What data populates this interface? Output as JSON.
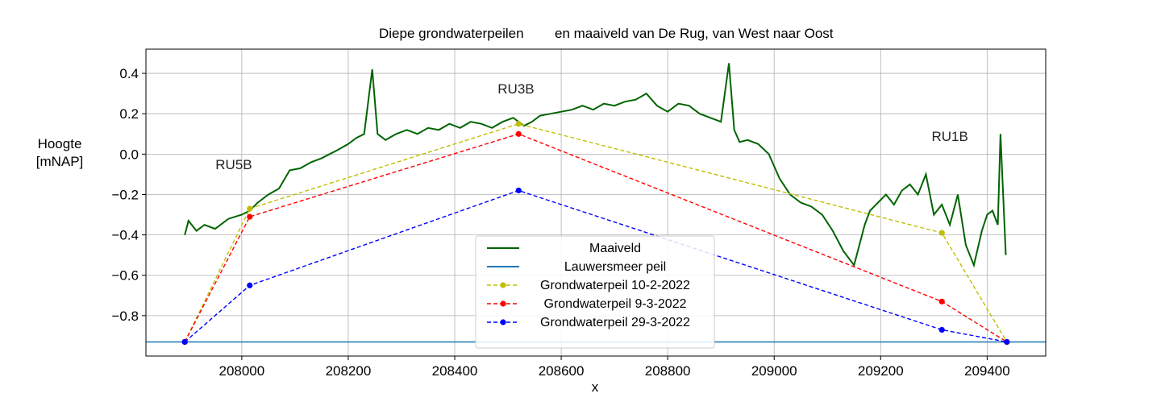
{
  "chart_data": {
    "type": "line",
    "title_part1": "Diepe grondwaterpeilen",
    "title_part2": "en maaiveld van De Rug, van West naar Oost",
    "xlabel": "x",
    "ylabel_line1": "Hoogte",
    "ylabel_line2": "[mNAP]",
    "xlim": [
      207820,
      209510
    ],
    "ylim": [
      -1.0,
      0.52
    ],
    "xticks": [
      208000,
      208200,
      208400,
      208600,
      208800,
      209000,
      209200,
      209400
    ],
    "xtick_labels": [
      "208000",
      "208200",
      "208400",
      "208600",
      "208800",
      "209000",
      "209200",
      "209400"
    ],
    "yticks": [
      -0.8,
      -0.6,
      -0.4,
      -0.2,
      0.0,
      0.2,
      0.4
    ],
    "ytick_labels": [
      "−0.8",
      "−0.6",
      "−0.4",
      "−0.2",
      "0.0",
      "0.2",
      "0.4"
    ],
    "grid": true,
    "legend_position": "bottom-center",
    "annotations": [
      {
        "text": "RU5B",
        "x": 207985,
        "y": -0.075
      },
      {
        "text": "RU3B",
        "x": 208515,
        "y": 0.3
      },
      {
        "text": "RU1B",
        "x": 209330,
        "y": 0.065
      }
    ],
    "series": [
      {
        "name": "Maaiveld",
        "color": "#006400",
        "style": "solid",
        "x": [
          207893,
          207900,
          207915,
          207930,
          207950,
          207975,
          208000,
          208015,
          208030,
          208050,
          208070,
          208090,
          208110,
          208130,
          208150,
          208165,
          208180,
          208200,
          208215,
          208230,
          208245,
          208255,
          208270,
          208290,
          208310,
          208330,
          208350,
          208370,
          208390,
          208410,
          208430,
          208450,
          208470,
          208490,
          208510,
          208530,
          208545,
          208560,
          208580,
          208600,
          208620,
          208640,
          208660,
          208680,
          208700,
          208720,
          208740,
          208760,
          208780,
          208800,
          208820,
          208840,
          208860,
          208880,
          208900,
          208915,
          208925,
          208935,
          208950,
          208970,
          208990,
          209010,
          209030,
          209050,
          209070,
          209090,
          209110,
          209130,
          209150,
          209160,
          209170,
          209180,
          209195,
          209210,
          209225,
          209240,
          209255,
          209270,
          209285,
          209300,
          209315,
          209330,
          209345,
          209360,
          209375,
          209390,
          209400,
          209410,
          209420,
          209425,
          209430,
          209435
        ],
        "y": [
          -0.4,
          -0.33,
          -0.38,
          -0.35,
          -0.37,
          -0.32,
          -0.3,
          -0.28,
          -0.24,
          -0.2,
          -0.17,
          -0.08,
          -0.07,
          -0.04,
          -0.02,
          0.0,
          0.02,
          0.05,
          0.08,
          0.1,
          0.42,
          0.1,
          0.07,
          0.1,
          0.12,
          0.1,
          0.13,
          0.12,
          0.15,
          0.13,
          0.16,
          0.15,
          0.13,
          0.16,
          0.18,
          0.14,
          0.16,
          0.19,
          0.2,
          0.21,
          0.22,
          0.24,
          0.22,
          0.25,
          0.24,
          0.26,
          0.27,
          0.3,
          0.24,
          0.21,
          0.25,
          0.24,
          0.2,
          0.18,
          0.16,
          0.45,
          0.12,
          0.06,
          0.07,
          0.05,
          0.0,
          -0.12,
          -0.2,
          -0.24,
          -0.26,
          -0.3,
          -0.38,
          -0.48,
          -0.55,
          -0.45,
          -0.35,
          -0.28,
          -0.24,
          -0.2,
          -0.25,
          -0.18,
          -0.15,
          -0.2,
          -0.1,
          -0.3,
          -0.25,
          -0.35,
          -0.2,
          -0.45,
          -0.55,
          -0.38,
          -0.3,
          -0.28,
          -0.35,
          0.1,
          -0.2,
          -0.5
        ]
      },
      {
        "name": "Lauwersmeer peil",
        "color": "#1f77b4",
        "style": "solid",
        "x": [
          207820,
          209510
        ],
        "y": [
          -0.93,
          -0.93
        ]
      },
      {
        "name": "Grondwaterpeil 10-2-2022",
        "color": "#bfbf00",
        "style": "dashed",
        "x": [
          207893,
          208015,
          208520,
          209315,
          209437
        ],
        "y": [
          -0.93,
          -0.27,
          0.15,
          -0.39,
          -0.93
        ]
      },
      {
        "name": "Grondwaterpeil 9-3-2022",
        "color": "#ff0000",
        "style": "dashed",
        "x": [
          207893,
          208015,
          208520,
          209315,
          209437
        ],
        "y": [
          -0.93,
          -0.31,
          0.1,
          -0.73,
          -0.93
        ]
      },
      {
        "name": "Grondwaterpeil 29-3-2022",
        "color": "#0000ff",
        "style": "dashed",
        "x": [
          207893,
          208015,
          208520,
          209315,
          209437
        ],
        "y": [
          -0.93,
          -0.65,
          -0.18,
          -0.87,
          -0.93
        ]
      }
    ]
  }
}
